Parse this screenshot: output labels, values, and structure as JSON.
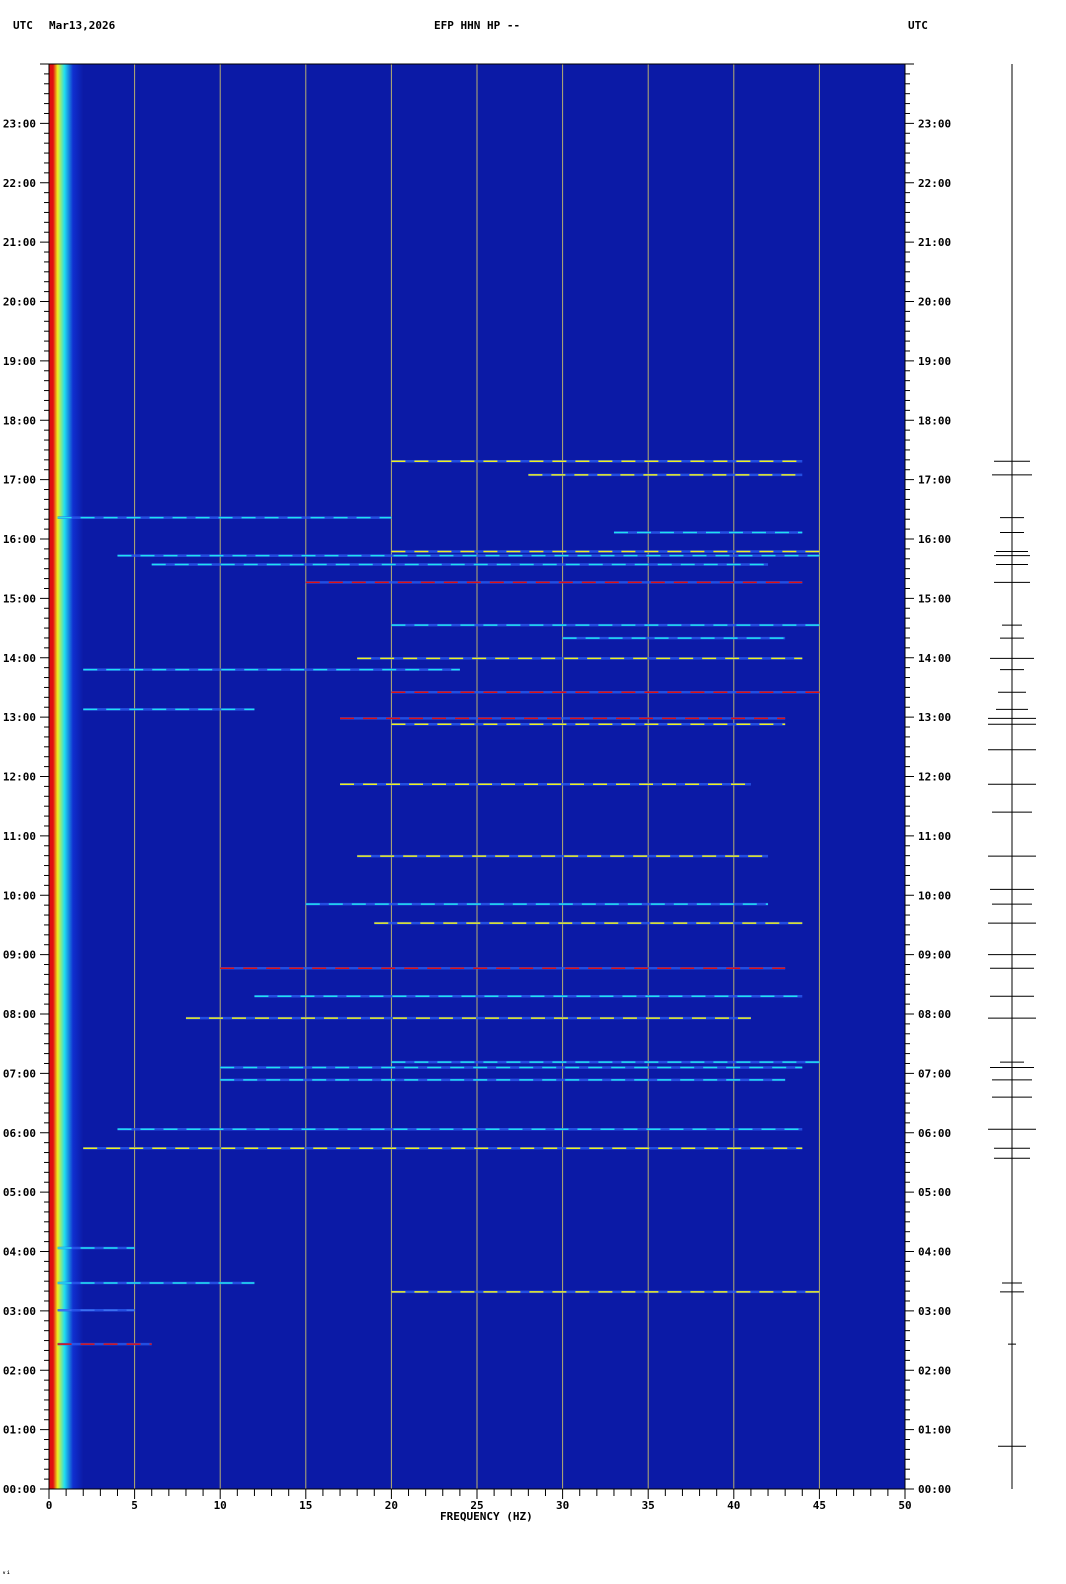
{
  "header": {
    "left_tz": "UTC",
    "date": "Mar13,2026",
    "station": "EFP HHN HP --",
    "right_tz": "UTC"
  },
  "footer_mark": "ᵥᵢ",
  "chart_data": {
    "type": "heatmap",
    "subtype": "spectrogram",
    "title": "EFP HHN HP --",
    "xlabel": "FREQUENCY (HZ)",
    "ylabel": "",
    "xlim": [
      0,
      50
    ],
    "ylim_hours_utc": [
      0,
      24
    ],
    "x_ticks": [
      "0",
      "5",
      "10",
      "15",
      "20",
      "25",
      "30",
      "35",
      "40",
      "45",
      "50"
    ],
    "y_ticks": [
      "00:00",
      "01:00",
      "02:00",
      "03:00",
      "04:00",
      "05:00",
      "06:00",
      "07:00",
      "08:00",
      "09:00",
      "10:00",
      "11:00",
      "12:00",
      "13:00",
      "14:00",
      "15:00",
      "16:00",
      "17:00",
      "18:00",
      "19:00",
      "20:00",
      "21:00",
      "22:00",
      "23:00"
    ],
    "gridlines_hz": [
      5,
      10,
      15,
      20,
      25,
      30,
      35,
      40,
      45
    ],
    "colors": {
      "background": "#0b1aa6",
      "grid": "#b8b070",
      "low": "#1030d0",
      "mid": "#20e0f0",
      "high": "#f0f020",
      "peak": "#e01010"
    },
    "events": [
      {
        "hour": 17.31,
        "f0": 20,
        "f1": 44,
        "level": 0.8
      },
      {
        "hour": 17.08,
        "f0": 28,
        "f1": 44,
        "level": 0.8
      },
      {
        "hour": 16.36,
        "f0": 0.5,
        "f1": 20,
        "level": 0.7
      },
      {
        "hour": 16.11,
        "f0": 33,
        "f1": 44,
        "level": 0.6
      },
      {
        "hour": 15.79,
        "f0": 20,
        "f1": 45,
        "level": 0.8
      },
      {
        "hour": 15.72,
        "f0": 4,
        "f1": 45,
        "level": 0.7
      },
      {
        "hour": 15.57,
        "f0": 6,
        "f1": 42,
        "level": 0.6
      },
      {
        "hour": 15.27,
        "f0": 15,
        "f1": 44,
        "level": 0.9
      },
      {
        "hour": 14.55,
        "f0": 20,
        "f1": 45,
        "level": 0.7
      },
      {
        "hour": 14.33,
        "f0": 30,
        "f1": 43,
        "level": 0.6
      },
      {
        "hour": 13.99,
        "f0": 18,
        "f1": 44,
        "level": 0.8
      },
      {
        "hour": 13.8,
        "f0": 2,
        "f1": 24,
        "level": 0.6
      },
      {
        "hour": 13.42,
        "f0": 20,
        "f1": 45,
        "level": 0.9
      },
      {
        "hour": 13.13,
        "f0": 2,
        "f1": 12,
        "level": 0.6
      },
      {
        "hour": 12.98,
        "f0": 17,
        "f1": 43,
        "level": 0.9
      },
      {
        "hour": 12.88,
        "f0": 20,
        "f1": 43,
        "level": 0.8
      },
      {
        "hour": 11.87,
        "f0": 17,
        "f1": 41,
        "level": 0.8
      },
      {
        "hour": 10.66,
        "f0": 18,
        "f1": 42,
        "level": 0.8
      },
      {
        "hour": 9.85,
        "f0": 15,
        "f1": 42,
        "level": 0.7
      },
      {
        "hour": 9.53,
        "f0": 19,
        "f1": 44,
        "level": 0.8
      },
      {
        "hour": 8.77,
        "f0": 10,
        "f1": 43,
        "level": 0.9
      },
      {
        "hour": 8.3,
        "f0": 12,
        "f1": 44,
        "level": 0.6
      },
      {
        "hour": 7.93,
        "f0": 8,
        "f1": 41,
        "level": 0.8
      },
      {
        "hour": 7.19,
        "f0": 20,
        "f1": 45,
        "level": 0.7
      },
      {
        "hour": 7.1,
        "f0": 10,
        "f1": 44,
        "level": 0.6
      },
      {
        "hour": 6.89,
        "f0": 10,
        "f1": 43,
        "level": 0.6
      },
      {
        "hour": 6.06,
        "f0": 4,
        "f1": 44,
        "level": 0.7
      },
      {
        "hour": 5.74,
        "f0": 2,
        "f1": 44,
        "level": 0.8
      },
      {
        "hour": 4.06,
        "f0": 0.5,
        "f1": 5,
        "level": 0.6
      },
      {
        "hour": 3.47,
        "f0": 0.5,
        "f1": 12,
        "level": 0.6
      },
      {
        "hour": 3.32,
        "f0": 20,
        "f1": 45,
        "level": 0.8
      },
      {
        "hour": 3.01,
        "f0": 0.5,
        "f1": 5,
        "level": 0.5
      },
      {
        "hour": 2.44,
        "f0": 0.5,
        "f1": 6,
        "level": 0.9
      }
    ],
    "trace_bursts": [
      {
        "hour": 17.31,
        "amp": 0.45
      },
      {
        "hour": 17.08,
        "amp": 0.5
      },
      {
        "hour": 16.36,
        "amp": 0.3
      },
      {
        "hour": 16.11,
        "amp": 0.3
      },
      {
        "hour": 15.79,
        "amp": 0.4
      },
      {
        "hour": 15.72,
        "amp": 0.45
      },
      {
        "hour": 15.57,
        "amp": 0.4
      },
      {
        "hour": 15.27,
        "amp": 0.45
      },
      {
        "hour": 14.55,
        "amp": 0.25
      },
      {
        "hour": 14.33,
        "amp": 0.3
      },
      {
        "hour": 13.99,
        "amp": 0.55
      },
      {
        "hour": 13.8,
        "amp": 0.3
      },
      {
        "hour": 13.42,
        "amp": 0.35
      },
      {
        "hour": 13.13,
        "amp": 0.4
      },
      {
        "hour": 12.98,
        "amp": 0.6
      },
      {
        "hour": 12.88,
        "amp": 0.6
      },
      {
        "hour": 12.45,
        "amp": 0.6
      },
      {
        "hour": 11.87,
        "amp": 0.6
      },
      {
        "hour": 11.4,
        "amp": 0.5
      },
      {
        "hour": 10.66,
        "amp": 0.6
      },
      {
        "hour": 10.1,
        "amp": 0.55
      },
      {
        "hour": 9.85,
        "amp": 0.5
      },
      {
        "hour": 9.53,
        "amp": 0.6
      },
      {
        "hour": 9.0,
        "amp": 0.6
      },
      {
        "hour": 8.77,
        "amp": 0.55
      },
      {
        "hour": 8.3,
        "amp": 0.55
      },
      {
        "hour": 7.93,
        "amp": 0.6
      },
      {
        "hour": 7.19,
        "amp": 0.3
      },
      {
        "hour": 7.1,
        "amp": 0.55
      },
      {
        "hour": 6.89,
        "amp": 0.5
      },
      {
        "hour": 6.6,
        "amp": 0.5
      },
      {
        "hour": 6.06,
        "amp": 0.6
      },
      {
        "hour": 5.74,
        "amp": 0.45
      },
      {
        "hour": 5.57,
        "amp": 0.45
      },
      {
        "hour": 3.47,
        "amp": 0.25
      },
      {
        "hour": 3.32,
        "amp": 0.3
      },
      {
        "hour": 2.44,
        "amp": 0.1
      },
      {
        "hour": 0.72,
        "amp": 0.35
      }
    ]
  }
}
